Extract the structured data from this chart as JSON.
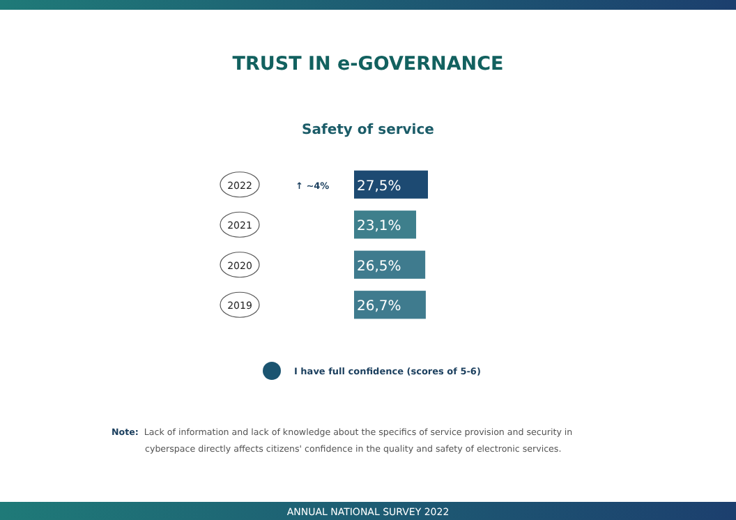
{
  "chart_data": {
    "type": "bar",
    "orientation": "horizontal",
    "title": "TRUST IN e-GOVERNANCE",
    "subtitle": "Safety of service",
    "categories": [
      "2022",
      "2021",
      "2020",
      "2019"
    ],
    "series": [
      {
        "name": "I have full confidence (scores of 5-6)",
        "color": "#1b5470",
        "colors": [
          "#1d4a72",
          "#3e7f8c",
          "#3f7b8e",
          "#3f7b8e"
        ],
        "values": [
          27.5,
          23.1,
          26.5,
          26.7
        ],
        "value_labels": [
          "27,5%",
          "23,1%",
          "26,5%",
          "26,7%"
        ]
      }
    ],
    "annotations": [
      "↑ ~4%",
      "Note: Lack of information and lack of knowledge about the specifics of service provision and security in cyberspace directly affects citizens' confidence in the quality and safety of electronic services.",
      "ANNUAL NATIONAL SURVEY 2022"
    ],
    "legend": "bottom"
  }
}
